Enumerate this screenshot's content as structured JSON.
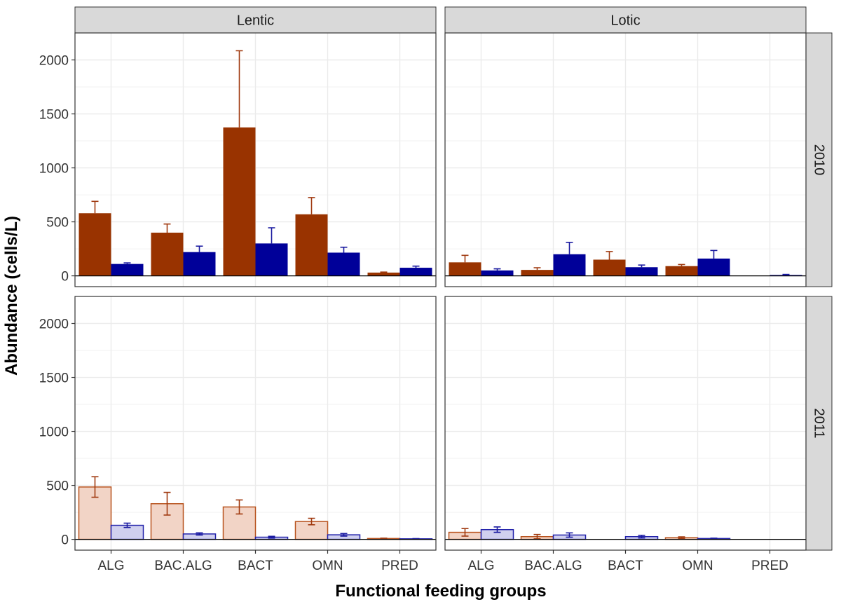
{
  "chart_data": {
    "type": "bar",
    "xlabel": "Functional feeding groups",
    "ylabel": "Abundance (cells/L)",
    "ylim": [
      -100,
      2250
    ],
    "yticks": [
      0,
      500,
      1000,
      1500,
      2000
    ],
    "grid": true,
    "categories": [
      "ALG",
      "BAC.ALG",
      "BACT",
      "OMN",
      "PRED"
    ],
    "facet_columns": [
      "Lentic",
      "Lotic"
    ],
    "facet_rows": [
      "2010",
      "2011"
    ],
    "colors": {
      "orange_solid": "#993300",
      "blue_solid": "#000099",
      "orange_light_fill": "#f2d4c6",
      "orange_light_edge": "#b8531e",
      "blue_light_fill": "#d0d0ee",
      "blue_light_edge": "#2222aa",
      "strip_fill": "#d9d9d9",
      "strip_edge": "#333333",
      "grid": "#ebebeb",
      "error_orange": "#a03a10",
      "error_blue": "#1a1aa0"
    },
    "panels": [
      {
        "column": "Lentic",
        "row": "2010",
        "style": "solid",
        "series": [
          {
            "values": [
              580,
              400,
              1375,
              570,
              30
            ],
            "errors": [
              110,
              80,
              710,
              155,
              5
            ]
          },
          {
            "values": [
              110,
              220,
              300,
              215,
              75
            ],
            "errors": [
              10,
              55,
              145,
              50,
              15
            ]
          }
        ]
      },
      {
        "column": "Lotic",
        "row": "2010",
        "style": "solid",
        "series": [
          {
            "values": [
              125,
              55,
              150,
              90,
              0
            ],
            "errors": [
              65,
              20,
              75,
              15,
              0
            ]
          },
          {
            "values": [
              50,
              200,
              80,
              160,
              8
            ],
            "errors": [
              15,
              110,
              20,
              75,
              5
            ]
          }
        ]
      },
      {
        "column": "Lentic",
        "row": "2011",
        "style": "light",
        "series": [
          {
            "values": [
              485,
              330,
              300,
              165,
              8
            ],
            "errors": [
              95,
              105,
              65,
              30,
              3
            ]
          },
          {
            "values": [
              130,
              50,
              20,
              42,
              5
            ],
            "errors": [
              20,
              10,
              8,
              12,
              2
            ]
          }
        ]
      },
      {
        "column": "Lotic",
        "row": "2011",
        "style": "light",
        "series": [
          {
            "values": [
              65,
              25,
              0,
              15,
              0
            ],
            "errors": [
              35,
              20,
              0,
              8,
              0
            ]
          },
          {
            "values": [
              90,
              40,
              25,
              8,
              0
            ],
            "errors": [
              25,
              20,
              12,
              3,
              0
            ]
          }
        ]
      }
    ]
  }
}
